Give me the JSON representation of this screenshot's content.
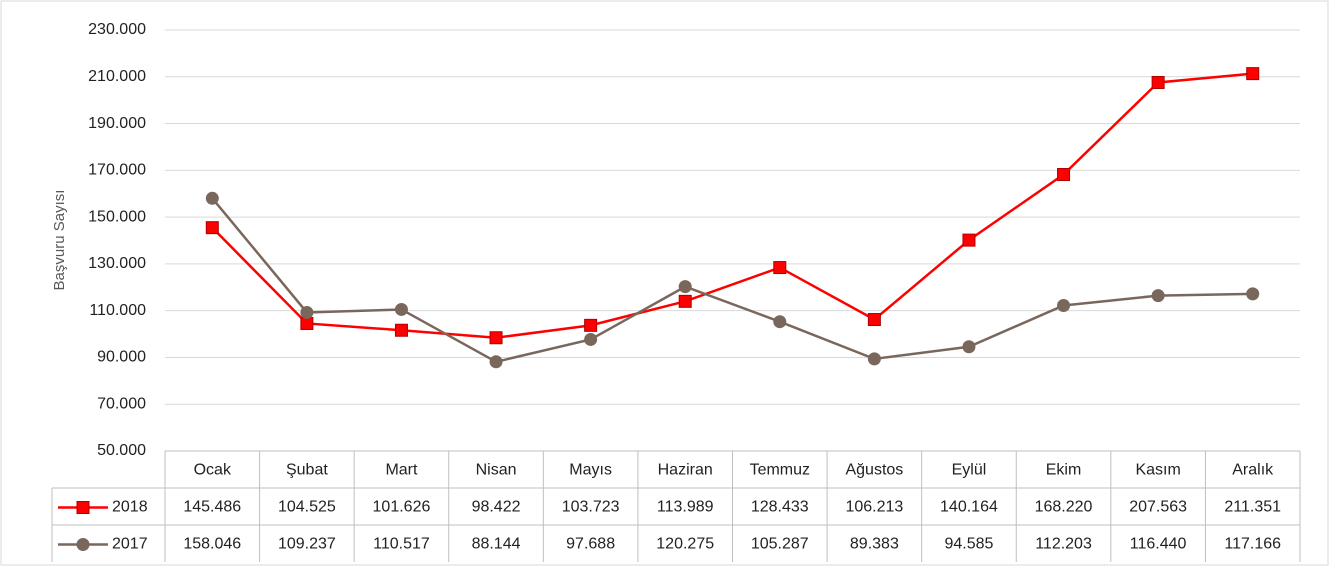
{
  "chart_data": {
    "type": "line",
    "y_label": "Başvuru Sayısı",
    "categories": [
      "Ocak",
      "Şubat",
      "Mart",
      "Nisan",
      "Mayıs",
      "Haziran",
      "Temmuz",
      "Ağustos",
      "Eylül",
      "Ekim",
      "Kasım",
      "Aralık"
    ],
    "series": [
      {
        "name": "2018",
        "color": "#ff0000",
        "marker": "square",
        "values": [
          145486,
          104525,
          101626,
          98422,
          103723,
          113989,
          128433,
          106213,
          140164,
          168220,
          207563,
          211351
        ],
        "value_labels": [
          "145.486",
          "104.525",
          "101.626",
          "98.422",
          "103.723",
          "113.989",
          "128.433",
          "106.213",
          "140.164",
          "168.220",
          "207.563",
          "211.351"
        ]
      },
      {
        "name": "2017",
        "color": "#7a675c",
        "marker": "circle",
        "values": [
          158046,
          109237,
          110517,
          88144,
          97688,
          120275,
          105287,
          89383,
          94585,
          112203,
          116440,
          117166
        ],
        "value_labels": [
          "158.046",
          "109.237",
          "110.517",
          "88.144",
          "97.688",
          "120.275",
          "105.287",
          "89.383",
          "94.585",
          "112.203",
          "116.440",
          "117.166"
        ]
      }
    ],
    "ylim": [
      50000,
      230000
    ],
    "yticks": [
      {
        "value": 50000,
        "label": "50.000"
      },
      {
        "value": 70000,
        "label": "70.000"
      },
      {
        "value": 90000,
        "label": "90.000"
      },
      {
        "value": 110000,
        "label": "110.000"
      },
      {
        "value": 130000,
        "label": "130.000"
      },
      {
        "value": 150000,
        "label": "150.000"
      },
      {
        "value": 170000,
        "label": "170.000"
      },
      {
        "value": 190000,
        "label": "190.000"
      },
      {
        "value": 210000,
        "label": "210.000"
      },
      {
        "value": 230000,
        "label": "230.000"
      }
    ],
    "grid": true
  }
}
